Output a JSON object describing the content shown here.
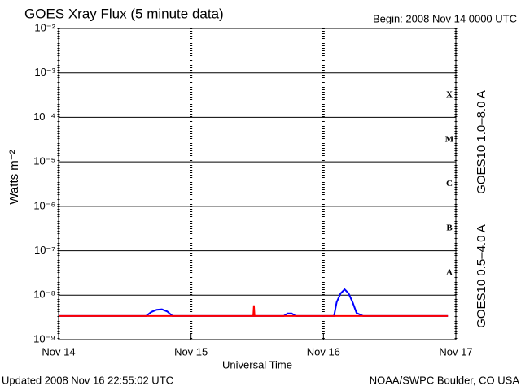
{
  "chart_data": {
    "type": "line",
    "title": "GOES Xray Flux (5 minute data)",
    "subtitle": "Begin:  2008 Nov 14 0000 UTC",
    "x_label": "Universal Time",
    "y_label": "Watts m⁻²",
    "footer_left": "Updated 2008 Nov 16 22:55:02 UTC",
    "footer_right": "NOAA/SWPC Boulder, CO USA",
    "flare_classes": [
      "X",
      "M",
      "C",
      "B",
      "A"
    ],
    "log_scale": true,
    "grid": true,
    "xlim": [
      0,
      3
    ],
    "xticks": [
      {
        "value": 0,
        "label": "Nov 14"
      },
      {
        "value": 1,
        "label": "Nov 15"
      },
      {
        "value": 2,
        "label": "Nov 16"
      },
      {
        "value": 3,
        "label": "Nov 17"
      }
    ],
    "ylim": [
      1e-09,
      0.01
    ],
    "yticks": [
      {
        "value": 1e-09,
        "label": "10⁻⁹"
      },
      {
        "value": 1e-08,
        "label": "10⁻⁸"
      },
      {
        "value": 1e-07,
        "label": "10⁻⁷"
      },
      {
        "value": 1e-06,
        "label": "10⁻⁶"
      },
      {
        "value": 1e-05,
        "label": "10⁻⁵"
      },
      {
        "value": 0.0001,
        "label": "10⁻⁴"
      },
      {
        "value": 0.001,
        "label": "10⁻³"
      },
      {
        "value": 0.01,
        "label": "10⁻²"
      }
    ],
    "series": [
      {
        "name": "GOES10 0.5–4.0 A",
        "color": "#0000ff",
        "x": [
          0,
          0.66,
          0.7,
          0.74,
          0.78,
          0.82,
          0.86,
          1.7,
          1.73,
          1.76,
          1.79,
          2.08,
          2.1,
          2.13,
          2.16,
          2.19,
          2.22,
          2.25,
          2.3,
          2.94
        ],
        "values": [
          3.4e-09,
          3.4e-09,
          4.2e-09,
          4.7e-09,
          4.8e-09,
          4.3e-09,
          3.4e-09,
          3.4e-09,
          3.9e-09,
          3.9e-09,
          3.4e-09,
          3.4e-09,
          7e-09,
          1.1e-08,
          1.35e-08,
          1.1e-08,
          7e-09,
          4e-09,
          3.4e-09,
          3.4e-09
        ]
      },
      {
        "name": "GOES10 1.0–8.0 A",
        "color": "#ff0000",
        "x": [
          0,
          1.47,
          1.475,
          1.48,
          2.94
        ],
        "values": [
          3.4e-09,
          3.4e-09,
          5.9e-09,
          3.4e-09,
          3.4e-09
        ]
      }
    ]
  }
}
